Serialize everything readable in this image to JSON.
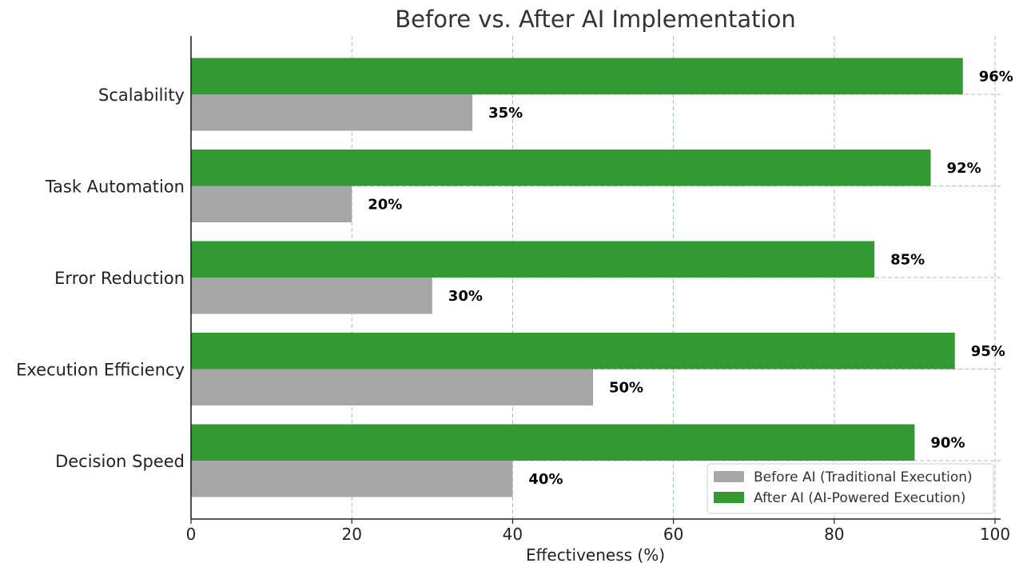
{
  "chart_data": {
    "type": "bar",
    "orientation": "horizontal",
    "title": "Before vs. After AI Implementation",
    "xlabel": "Effectiveness (%)",
    "ylabel": "",
    "xlim": [
      0,
      100
    ],
    "xticks": [
      0,
      20,
      40,
      60,
      80,
      100
    ],
    "categories": [
      "Decision Speed",
      "Execution Efficiency",
      "Error Reduction",
      "Task Automation",
      "Scalability"
    ],
    "series": [
      {
        "name": "Before AI (Traditional Execution)",
        "color": "#a6a6a6",
        "values": [
          40,
          50,
          30,
          20,
          35
        ]
      },
      {
        "name": "After AI (AI-Powered Execution)",
        "color": "#339933",
        "values": [
          90,
          95,
          85,
          92,
          96
        ]
      }
    ],
    "value_label_suffix": "%",
    "grid": true,
    "grid_color": "#99cc99",
    "legend_position": "lower-right"
  }
}
